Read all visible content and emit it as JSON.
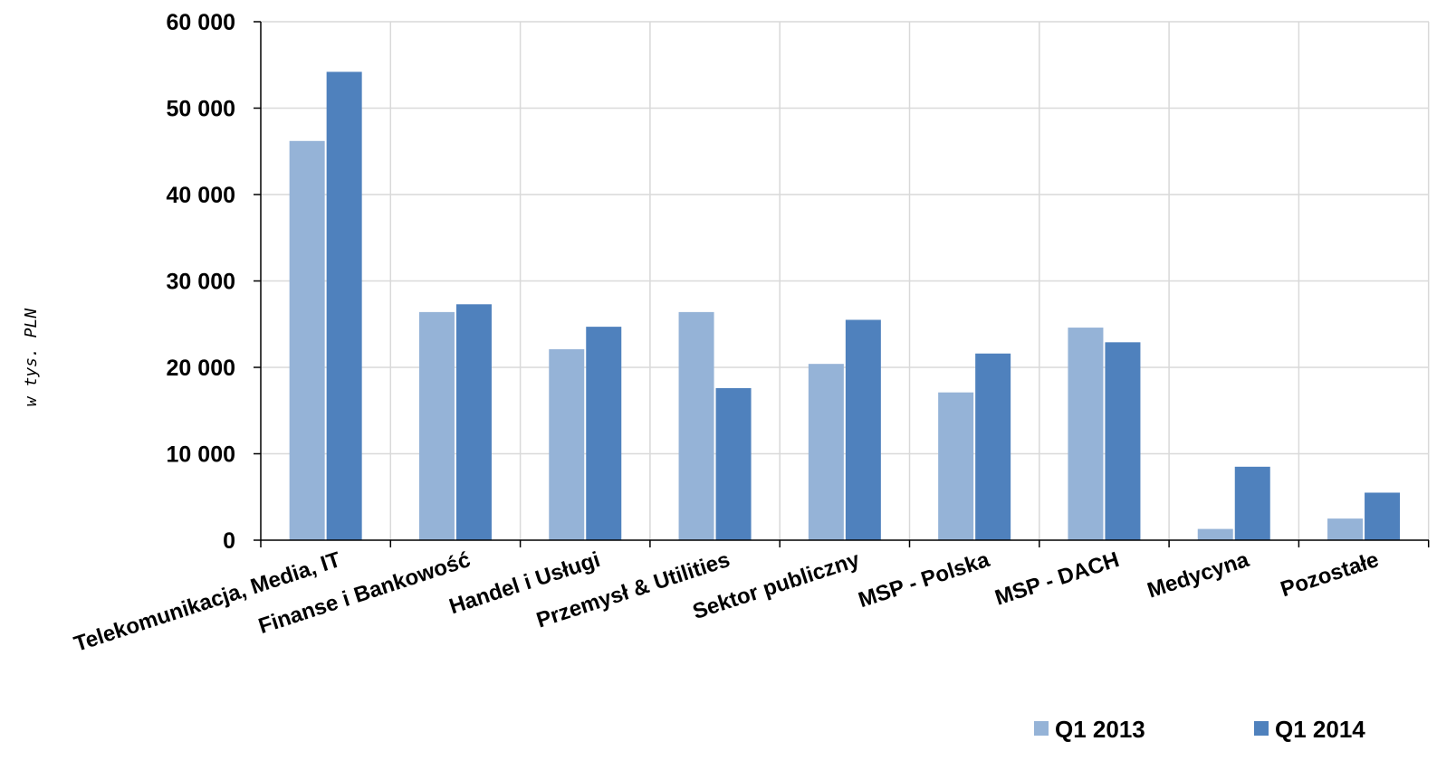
{
  "chart_data": {
    "type": "bar",
    "ylabel": "w tys. PLN",
    "ylim": [
      0,
      60000
    ],
    "yticks": [
      0,
      10000,
      20000,
      30000,
      40000,
      50000,
      60000
    ],
    "ytick_labels": [
      "0",
      "10 000",
      "20 000",
      "30 000",
      "40 000",
      "50 000",
      "60 000"
    ],
    "grid": true,
    "legend_position": "bottom-right",
    "categories": [
      "Telekomunikacja, Media, IT",
      "Finanse i Bankowość",
      "Handel i Usługi",
      "Przemysł & Utilities",
      "Sektor publiczny",
      "MSP - Polska",
      "MSP - DACH",
      "Medycyna",
      "Pozostałe"
    ],
    "series": [
      {
        "name": "Q1 2013",
        "color": "#95b3d7",
        "values": [
          46200,
          26400,
          22100,
          26400,
          20400,
          17100,
          24600,
          1300,
          2500
        ]
      },
      {
        "name": "Q1 2014",
        "color": "#4f81bd",
        "values": [
          54200,
          27300,
          24700,
          17600,
          25500,
          21600,
          22900,
          8500,
          5500
        ]
      }
    ]
  }
}
